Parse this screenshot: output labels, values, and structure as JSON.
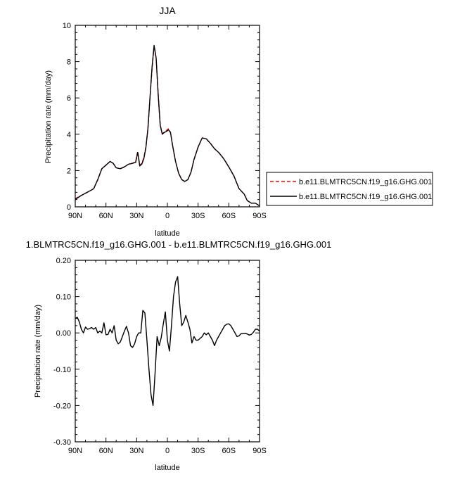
{
  "chart_data": [
    {
      "type": "line",
      "title": "JJA",
      "xlabel": "latitude",
      "ylabel": "Precipitation rate (mm/day)",
      "xlim": [
        90,
        -90
      ],
      "ylim": [
        0,
        10
      ],
      "x_tick_values": [
        90,
        60,
        30,
        0,
        -30,
        -60,
        -90
      ],
      "x_tick_labels": [
        "90N",
        "60N",
        "30N",
        "0",
        "30S",
        "60S",
        "90S"
      ],
      "y_tick_values": [
        0,
        2,
        4,
        6,
        8,
        10
      ],
      "y_tick_labels": [
        "0",
        "2",
        "4",
        "6",
        "8",
        "10"
      ],
      "legend_position": "right",
      "series": [
        {
          "name": "b.e11.BLMTRC5CN.f19_g16.GHG.001",
          "color": "#ff0000",
          "dash": "dashed",
          "x": [
            90,
            85,
            80,
            75,
            72,
            68,
            64,
            60,
            56,
            53,
            50,
            46,
            42,
            38,
            34,
            31,
            29,
            27,
            25,
            23,
            21,
            19,
            17,
            15,
            13,
            11,
            9,
            7,
            5,
            3,
            1,
            -1,
            -3,
            -5,
            -8,
            -11,
            -14,
            -17,
            -20,
            -23,
            -26,
            -30,
            -34,
            -38,
            -42,
            -46,
            -50,
            -55,
            -60,
            -65,
            -70,
            -75,
            -78,
            -82,
            -86,
            -90
          ],
          "y": [
            0.45,
            0.6,
            0.75,
            0.9,
            1.0,
            1.5,
            2.1,
            2.3,
            2.5,
            2.4,
            2.15,
            2.1,
            2.2,
            2.35,
            2.4,
            2.5,
            3.05,
            2.3,
            2.4,
            2.7,
            3.3,
            4.3,
            6.0,
            7.6,
            8.85,
            8.2,
            6.2,
            4.5,
            4.05,
            4.1,
            4.2,
            4.3,
            4.1,
            3.4,
            2.5,
            1.85,
            1.5,
            1.4,
            1.5,
            1.9,
            2.6,
            3.3,
            3.8,
            3.75,
            3.5,
            3.2,
            3.0,
            2.65,
            2.2,
            1.7,
            1.0,
            0.7,
            0.35,
            0.2,
            0.2,
            0.05
          ]
        },
        {
          "name": "b.e11.BLMTRC5CN.f19_g16.GHG.001",
          "color": "#000000",
          "dash": "solid",
          "x": [
            90,
            85,
            80,
            75,
            72,
            68,
            64,
            60,
            56,
            53,
            50,
            46,
            42,
            38,
            34,
            31,
            29,
            27,
            25,
            23,
            21,
            19,
            17,
            15,
            13,
            11,
            9,
            7,
            5,
            3,
            1,
            -1,
            -3,
            -5,
            -8,
            -11,
            -14,
            -17,
            -20,
            -23,
            -26,
            -30,
            -34,
            -38,
            -42,
            -46,
            -50,
            -55,
            -60,
            -65,
            -70,
            -75,
            -78,
            -82,
            -86,
            -90
          ],
          "y": [
            0.4,
            0.6,
            0.75,
            0.9,
            1.0,
            1.5,
            2.1,
            2.3,
            2.5,
            2.4,
            2.15,
            2.1,
            2.2,
            2.35,
            2.4,
            2.45,
            3.0,
            2.25,
            2.35,
            2.65,
            3.25,
            4.3,
            6.05,
            7.7,
            8.9,
            8.2,
            6.2,
            4.5,
            4.0,
            4.1,
            4.15,
            4.25,
            4.1,
            3.4,
            2.5,
            1.85,
            1.5,
            1.4,
            1.5,
            1.9,
            2.6,
            3.3,
            3.8,
            3.75,
            3.5,
            3.2,
            3.0,
            2.65,
            2.2,
            1.7,
            1.0,
            0.7,
            0.35,
            0.2,
            0.2,
            0.05
          ]
        }
      ]
    },
    {
      "type": "line",
      "title": "1.BLMTRC5CN.f19_g16.GHG.001 - b.e11.BLMTRC5CN.f19_g16.GHG.001",
      "xlabel": "latitude",
      "ylabel": "Precipitation rate (mm/day)",
      "xlim": [
        90,
        -90
      ],
      "ylim": [
        -0.3,
        0.2
      ],
      "x_tick_values": [
        90,
        60,
        30,
        0,
        -30,
        -60,
        -90
      ],
      "x_tick_labels": [
        "90N",
        "60N",
        "30N",
        "0",
        "30S",
        "60S",
        "90S"
      ],
      "y_tick_values": [
        -0.3,
        -0.2,
        -0.1,
        0.0,
        0.1,
        0.2
      ],
      "y_tick_labels": [
        "-0.30",
        "-0.20",
        "-0.10",
        "0.00",
        "0.10",
        "0.20"
      ],
      "series": [
        {
          "color": "#000000",
          "dash": "solid",
          "x": [
            90,
            88,
            86,
            84,
            82,
            80,
            78,
            76,
            74,
            72,
            70,
            68,
            66,
            64,
            62,
            60,
            58,
            56,
            54,
            52,
            50,
            48,
            46,
            44,
            42,
            40,
            38,
            36,
            34,
            32,
            30,
            28,
            26,
            24,
            22,
            20,
            18,
            16,
            14,
            12,
            10,
            8,
            6,
            4,
            2,
            0,
            -2,
            -4,
            -6,
            -8,
            -10,
            -12,
            -14,
            -16,
            -18,
            -20,
            -22,
            -24,
            -26,
            -28,
            -30,
            -32,
            -34,
            -36,
            -38,
            -40,
            -42,
            -44,
            -46,
            -48,
            -50,
            -52,
            -54,
            -56,
            -58,
            -60,
            -62,
            -64,
            -66,
            -68,
            -70,
            -72,
            -74,
            -76,
            -78,
            -80,
            -82,
            -84,
            -86,
            -88,
            -90
          ],
          "y": [
            0.04,
            0.043,
            0.03,
            0.01,
            0.0,
            0.016,
            0.01,
            0.012,
            0.015,
            0.01,
            0.015,
            0.0,
            0.005,
            0.0,
            0.028,
            -0.005,
            -0.004,
            0.01,
            0.0,
            0.02,
            -0.02,
            -0.03,
            -0.025,
            -0.01,
            0.005,
            0.018,
            0.0,
            -0.035,
            -0.04,
            -0.03,
            -0.01,
            0.0,
            0.0,
            0.062,
            0.055,
            -0.02,
            -0.1,
            -0.17,
            -0.2,
            -0.11,
            -0.01,
            -0.035,
            -0.012,
            0.025,
            0.058,
            -0.02,
            -0.05,
            0.02,
            0.1,
            0.14,
            0.155,
            0.08,
            0.02,
            0.03,
            0.048,
            0.03,
            0.01,
            -0.028,
            -0.01,
            -0.02,
            -0.02,
            -0.015,
            -0.01,
            0.0,
            -0.005,
            0.0,
            -0.01,
            -0.02,
            -0.035,
            -0.02,
            -0.01,
            0.0,
            0.01,
            0.02,
            0.024,
            0.025,
            0.02,
            0.01,
            0.0,
            -0.01,
            -0.008,
            -0.002,
            -0.002,
            -0.001,
            -0.003,
            -0.006,
            -0.004,
            0.002,
            0.01,
            0.01,
            0.005
          ]
        }
      ]
    }
  ]
}
